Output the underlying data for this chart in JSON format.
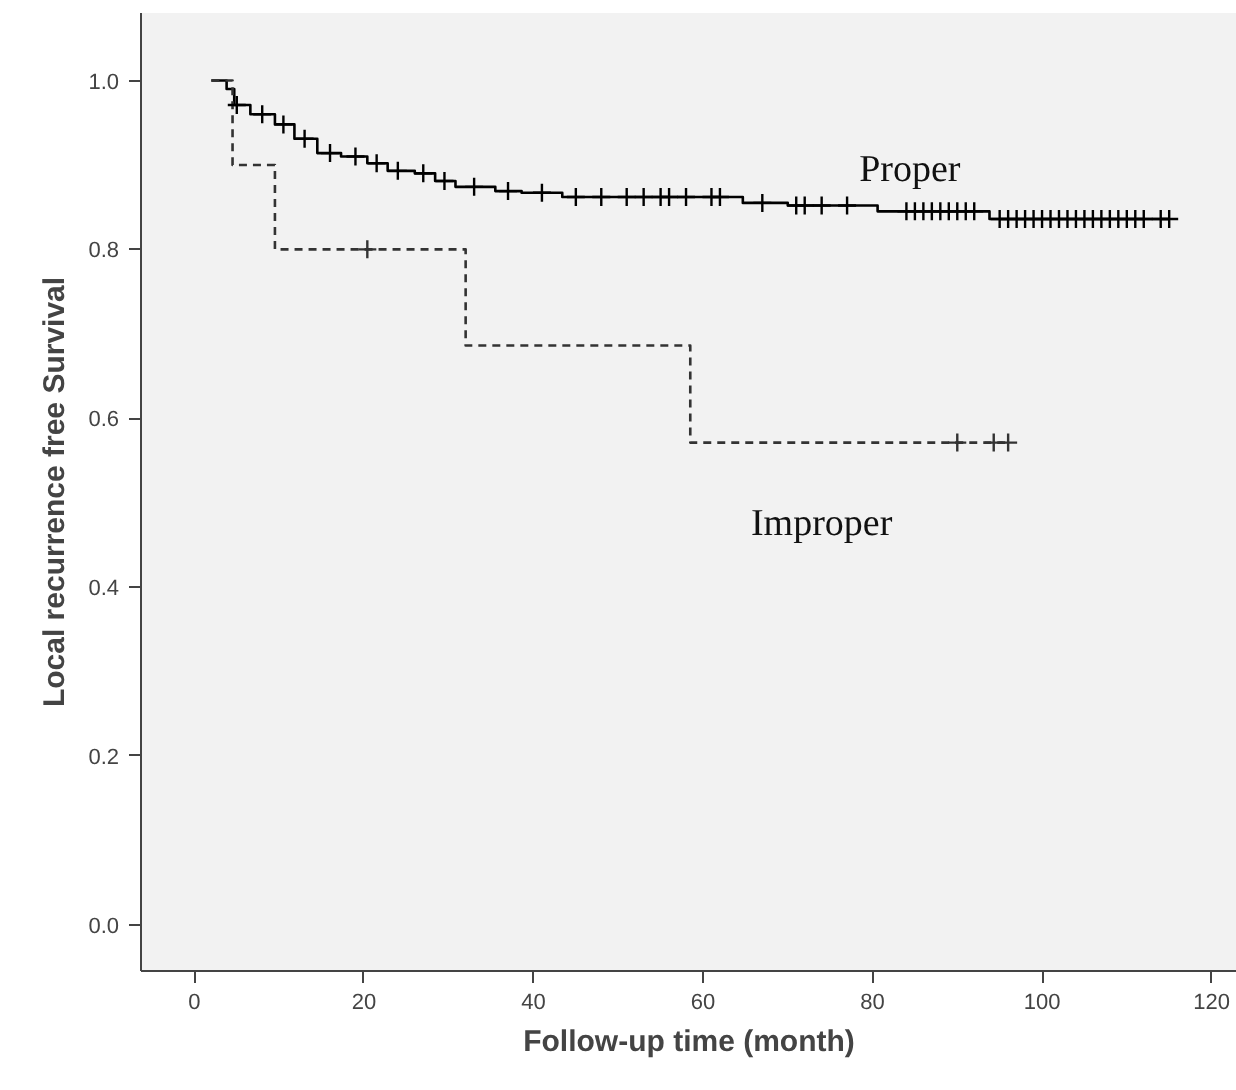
{
  "chart_data": {
    "type": "step",
    "xlabel": "Follow-up time (month)",
    "ylabel": "Local recurrence free Survival",
    "xlim": [
      -6.3,
      123
    ],
    "ylim": [
      -0.055,
      1.08
    ],
    "xticks": [
      0,
      20,
      40,
      60,
      80,
      100,
      120
    ],
    "yticks": [
      {
        "value": 0,
        "label": "0.0"
      },
      {
        "value": 0.2,
        "label": "0.2"
      },
      {
        "value": 0.4,
        "label": "0.4"
      },
      {
        "value": 0.6,
        "label": "0.6"
      },
      {
        "value": 0.8,
        "label": "0.8"
      },
      {
        "value": 1.0,
        "label": "1.0"
      }
    ],
    "grid": false,
    "series": [
      {
        "name": "Proper",
        "color": "#000000",
        "line_style": "solid",
        "x": [
          2,
          3.8,
          4.7,
          6.6,
          9.5,
          11.8,
          14.5,
          17.3,
          20.4,
          22.8,
          26,
          28.4,
          30.8,
          35.5,
          38.6,
          43.4,
          64.7,
          70,
          80.6,
          93.8,
          115
        ],
        "values": [
          1,
          0.99,
          0.971,
          0.96,
          0.948,
          0.931,
          0.914,
          0.91,
          0.902,
          0.893,
          0.89,
          0.881,
          0.874,
          0.869,
          0.867,
          0.862,
          0.855,
          0.852,
          0.845,
          0.836,
          0.836
        ]
      },
      {
        "name": "Improper",
        "color": "#333333",
        "line_style": "dashed",
        "x": [
          2,
          4.5,
          9.5,
          32,
          58.5,
          96
        ],
        "values": [
          1,
          0.9,
          0.8,
          0.686,
          0.571,
          0.571
        ]
      },
      {
        "type": "scatter",
        "marker": "cross",
        "color": "#000000",
        "x": [
          5,
          8,
          10.5,
          13,
          16,
          19,
          21.5,
          24,
          27,
          29.5,
          33,
          37,
          41,
          45,
          48,
          51,
          53,
          55,
          56,
          58,
          61,
          62,
          67,
          71,
          72,
          74,
          77,
          84,
          85,
          86,
          87,
          88,
          89,
          90,
          91,
          92,
          95,
          96,
          97,
          98,
          99,
          100,
          101,
          102,
          103,
          104,
          105,
          106,
          107,
          108,
          109,
          110,
          111,
          112,
          114,
          115
        ],
        "values": [
          0.971,
          0.96,
          0.948,
          0.931,
          0.914,
          0.91,
          0.902,
          0.893,
          0.89,
          0.881,
          0.874,
          0.869,
          0.867,
          0.862,
          0.862,
          0.862,
          0.862,
          0.862,
          0.862,
          0.862,
          0.862,
          0.862,
          0.855,
          0.852,
          0.852,
          0.852,
          0.852,
          0.845,
          0.845,
          0.845,
          0.845,
          0.845,
          0.845,
          0.845,
          0.845,
          0.845,
          0.836,
          0.836,
          0.836,
          0.836,
          0.836,
          0.836,
          0.836,
          0.836,
          0.836,
          0.836,
          0.836,
          0.836,
          0.836,
          0.836,
          0.836,
          0.836,
          0.836,
          0.836,
          0.836,
          0.836
        ]
      },
      {
        "type": "scatter",
        "marker": "cross",
        "color": "#333333",
        "x": [
          20.4,
          90,
          94.3,
          96
        ],
        "values": [
          0.8,
          0.571,
          0.571,
          0.571
        ]
      }
    ]
  }
}
